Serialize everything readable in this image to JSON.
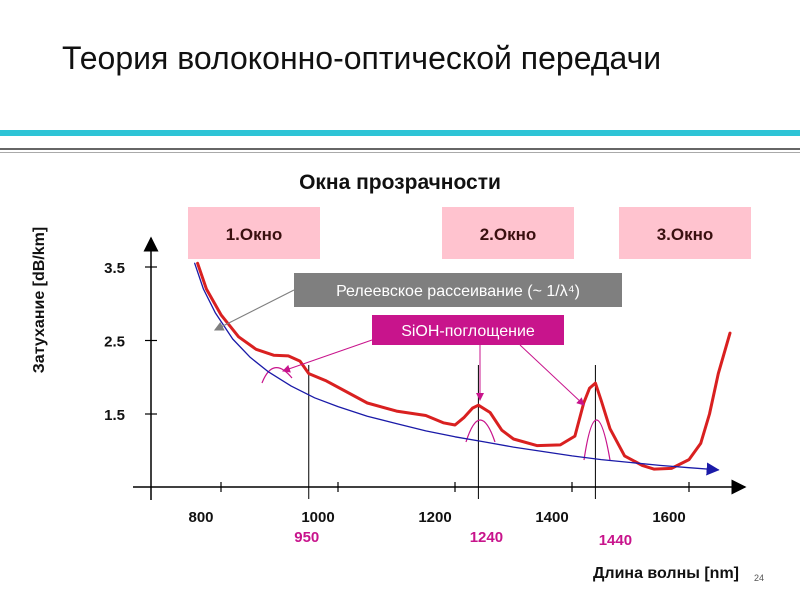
{
  "slide": {
    "title": "Теория волоконно-оптической передачи",
    "page_number": "24"
  },
  "colors": {
    "accent_rule": "#2ec4d6",
    "attenuation_curve": "#d92020",
    "rayleigh_curve": "#1a1aa8",
    "marker": "#c8148c",
    "window_fill": "#ffc3cf",
    "rayleigh_callout_bg": "#7f7f7f",
    "sioh_callout_bg": "#c8148c"
  },
  "chart_data": {
    "type": "line",
    "title": "Окна прозрачности",
    "xlabel": "Длина волны [nm]",
    "ylabel": "Затухание [dB/km]",
    "xlim": [
      700,
      1700
    ],
    "ylim": [
      0.5,
      3.9
    ],
    "x_ticks": [
      800,
      1000,
      1200,
      1400,
      1600
    ],
    "y_ticks": [
      1.5,
      2.5,
      3.5
    ],
    "tick_labels_x": [
      "800",
      "1000",
      "1200",
      "1400",
      "1600"
    ],
    "tick_labels_y": [
      "1.5",
      "2.5",
      "3.5"
    ],
    "series": [
      {
        "name": "Затухание",
        "x": [
          760,
          775,
          800,
          830,
          860,
          890,
          915,
          935,
          950,
          980,
          1050,
          1100,
          1150,
          1180,
          1200,
          1215,
          1230,
          1240,
          1260,
          1280,
          1300,
          1340,
          1380,
          1405,
          1420,
          1430,
          1440,
          1450,
          1465,
          1490,
          1520,
          1540,
          1570,
          1600,
          1620,
          1635,
          1650,
          1670
        ],
        "values": [
          3.55,
          3.2,
          2.85,
          2.55,
          2.38,
          2.3,
          2.29,
          2.22,
          2.05,
          1.95,
          1.65,
          1.54,
          1.48,
          1.38,
          1.35,
          1.45,
          1.58,
          1.62,
          1.52,
          1.28,
          1.16,
          1.07,
          1.08,
          1.2,
          1.65,
          1.85,
          1.92,
          1.68,
          1.3,
          0.93,
          0.8,
          0.75,
          0.76,
          0.88,
          1.1,
          1.5,
          2.05,
          2.6
        ]
      },
      {
        "name": "Рэлеевское рассеивание",
        "x": [
          755,
          770,
          790,
          820,
          850,
          880,
          920,
          960,
          1000,
          1050,
          1100,
          1150,
          1200,
          1250,
          1300,
          1350,
          1400,
          1450,
          1500,
          1550,
          1600,
          1650
        ],
        "values": [
          3.55,
          3.2,
          2.88,
          2.52,
          2.27,
          2.08,
          1.88,
          1.72,
          1.6,
          1.47,
          1.37,
          1.27,
          1.19,
          1.12,
          1.05,
          0.99,
          0.93,
          0.88,
          0.84,
          0.8,
          0.77,
          0.74
        ]
      }
    ],
    "windows": [
      {
        "label": "1.Окно",
        "center_nm": 870
      },
      {
        "label": "2.Окно",
        "center_nm": 1310
      },
      {
        "label": "3.Окно",
        "center_nm": 1550
      }
    ],
    "markers": [
      {
        "label": "950",
        "x": 950
      },
      {
        "label": "1240",
        "x": 1240
      },
      {
        "label": "1440",
        "x": 1440
      }
    ],
    "annotations": {
      "rayleigh": "Релеевское рассеивание (~ 1/λ⁴)",
      "sioh": "SiOH-поглощение"
    }
  }
}
